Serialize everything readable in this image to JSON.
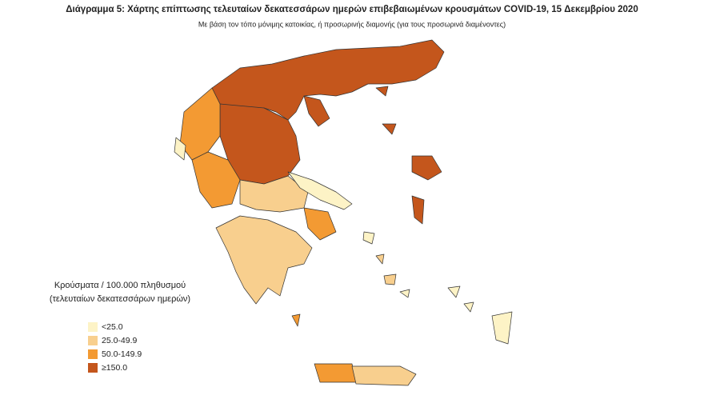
{
  "header": {
    "title": "Διάγραμμα 5: Χάρτης επίπτωσης τελευταίων δεκατεσσάρων ημερών επιβεβαιωμένων κρουσμάτων COVID-19, 15 Δεκεμβρίου 2020",
    "subtitle": "Με βάση τον τόπο μόνιμης κατοικίας, ή προσωρινής διαμονής (για τους προσωρινά διαμένοντες)"
  },
  "legend": {
    "title": [
      "Κρούσματα / 100.000 πληθυσμού",
      "(τελευταίων δεκατεσσάρων ημερών)"
    ],
    "items": [
      {
        "label": "<25.0",
        "color": "#fdf3c6"
      },
      {
        "label": "25.0-49.9",
        "color": "#f8cf8e"
      },
      {
        "label": "50.0-149.9",
        "color": "#f39a33"
      },
      {
        "label": "≥150.0",
        "color": "#c4561c"
      }
    ]
  }
}
